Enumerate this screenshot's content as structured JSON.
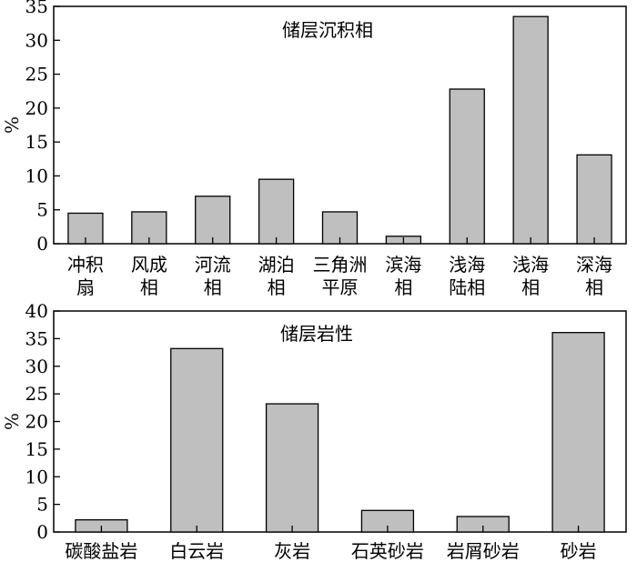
{
  "chart_data": [
    {
      "type": "bar",
      "title": "储层沉积相",
      "ylabel": "%",
      "xlabel": "",
      "ylim": [
        0,
        35
      ],
      "yticks": [
        0,
        5,
        10,
        15,
        20,
        25,
        30,
        35
      ],
      "grid": false,
      "bar_color": "#bfbfbf",
      "categories": [
        [
          "冲积",
          "扇"
        ],
        [
          "风成",
          "相"
        ],
        [
          "河流",
          "相"
        ],
        [
          "湖泊",
          "相"
        ],
        [
          "三角洲",
          "平原"
        ],
        [
          "滨海",
          "相"
        ],
        [
          "浅海",
          "陆相"
        ],
        [
          "浅海",
          "相"
        ],
        [
          "深海",
          "相"
        ]
      ],
      "values": [
        4.5,
        4.7,
        7.0,
        9.5,
        4.7,
        1.1,
        22.8,
        33.5,
        13.1
      ]
    },
    {
      "type": "bar",
      "title": "储层岩性",
      "ylabel": "%",
      "xlabel": "",
      "ylim": [
        0,
        40
      ],
      "yticks": [
        0,
        5,
        10,
        15,
        20,
        25,
        30,
        35,
        40
      ],
      "grid": false,
      "bar_color": "#bfbfbf",
      "categories": [
        [
          "碳酸盐岩"
        ],
        [
          "白云岩"
        ],
        [
          "灰岩"
        ],
        [
          "石英砂岩"
        ],
        [
          "岩屑砂岩"
        ],
        [
          "砂岩"
        ]
      ],
      "values": [
        2.2,
        33.2,
        23.2,
        3.9,
        2.8,
        36.1
      ]
    }
  ]
}
